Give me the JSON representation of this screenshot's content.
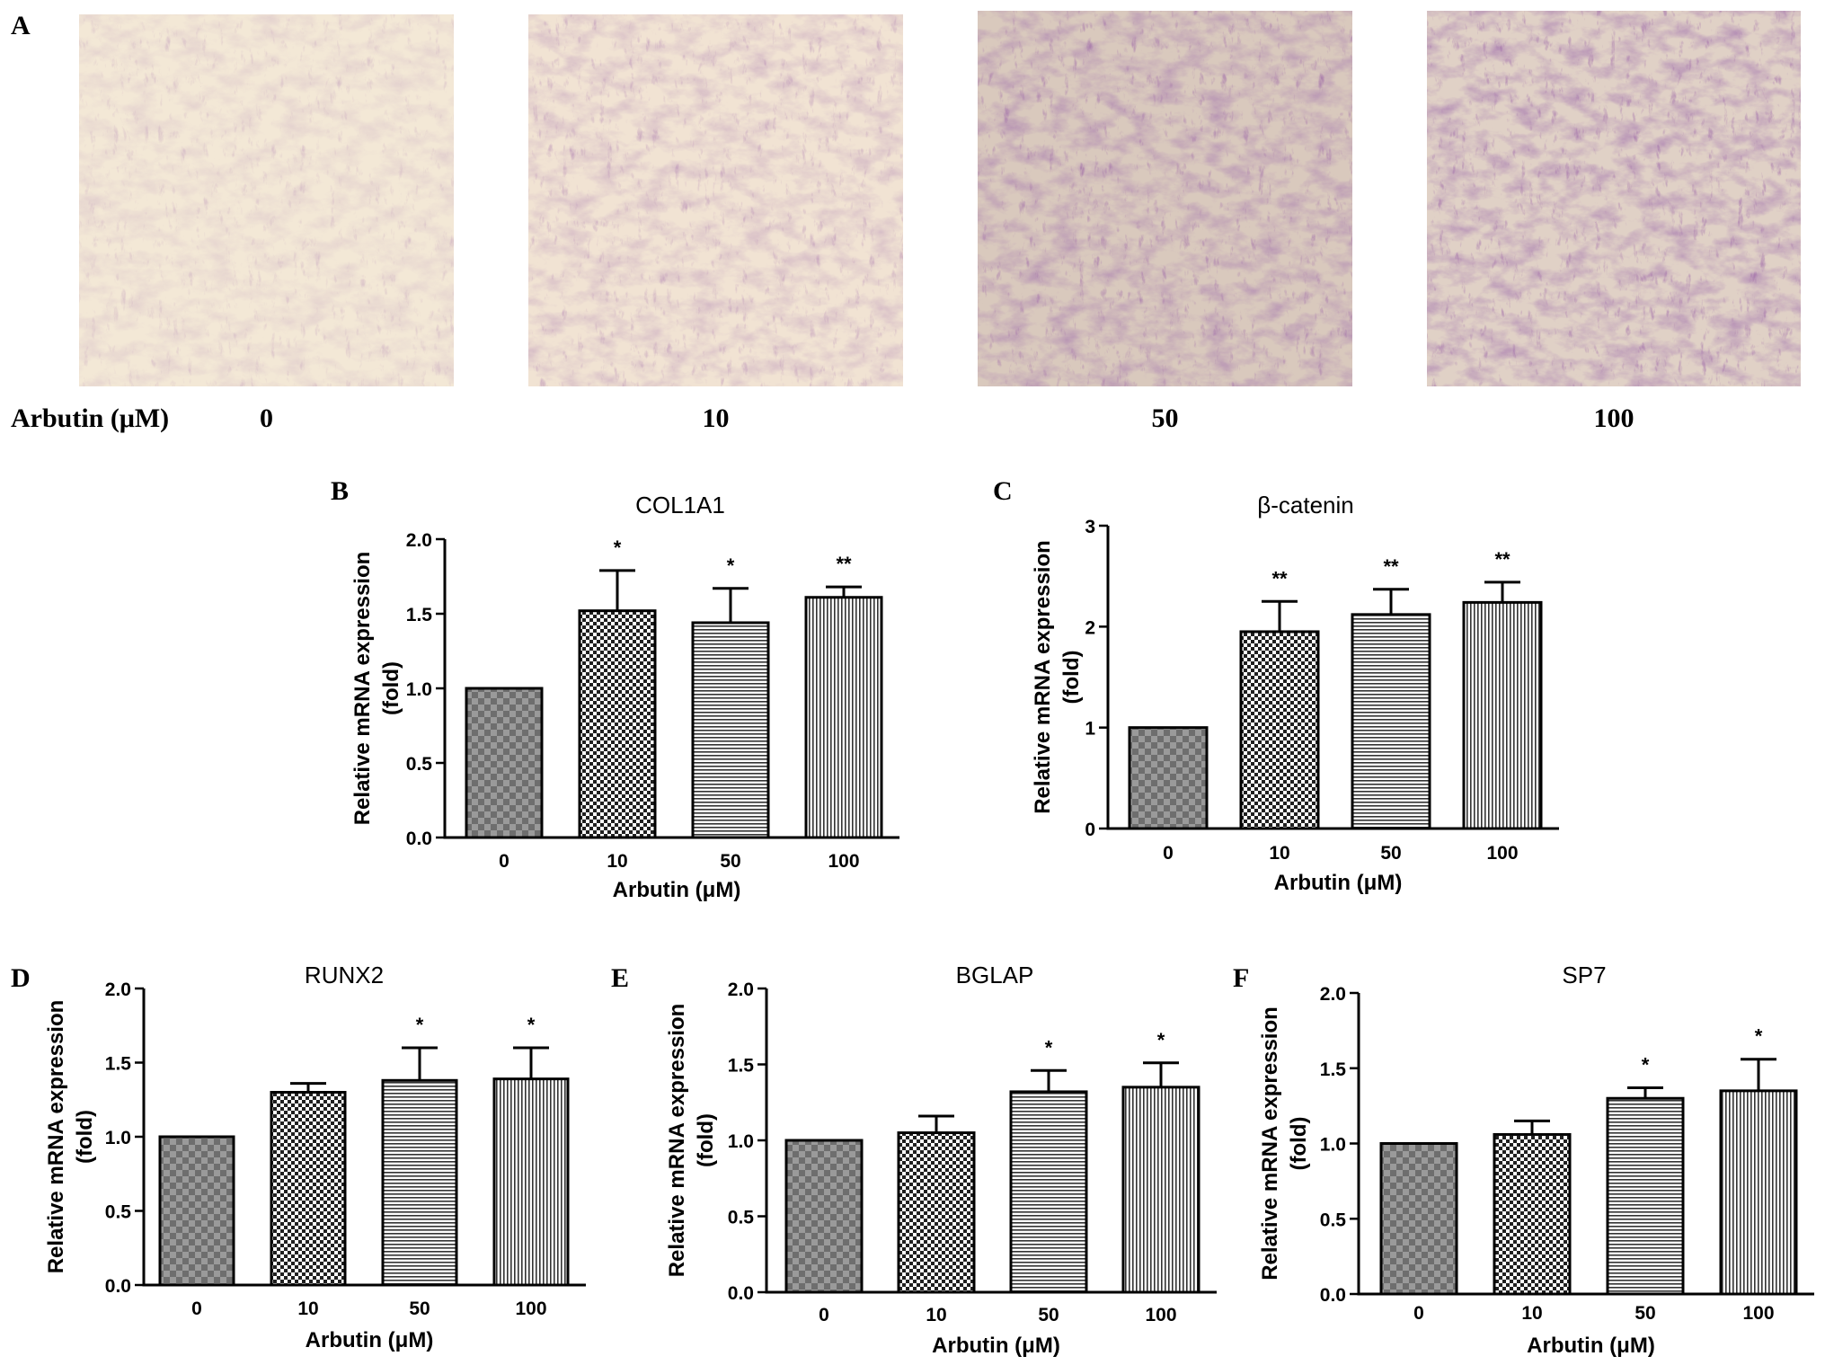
{
  "figure": {
    "panel_a": {
      "letter": "A",
      "row_label": "Arbutin (μM)",
      "images": [
        {
          "label": "0",
          "stain_density": 0.25
        },
        {
          "label": "10",
          "stain_density": 0.45
        },
        {
          "label": "50",
          "stain_density": 0.75
        },
        {
          "label": "100",
          "stain_density": 0.85
        }
      ],
      "colors": {
        "background_light": "#f2e6d4",
        "stain": "#5a2a6a"
      }
    }
  },
  "chart_data": [
    {
      "panel": "B",
      "type": "bar",
      "title": "COL1A1",
      "ylabel": "Relative mRNA expression (fold)",
      "xlabel": "Arbutin (μM)",
      "categories": [
        "0",
        "10",
        "50",
        "100"
      ],
      "values": [
        1.0,
        1.52,
        1.44,
        1.61
      ],
      "errors": [
        0,
        0.27,
        0.23,
        0.07
      ],
      "significance": [
        "",
        "*",
        "*",
        "**"
      ],
      "ylim": [
        0,
        2.0
      ],
      "yticks": [
        0.0,
        0.5,
        1.0,
        1.5,
        2.0
      ],
      "ytick_labels": [
        "0.0",
        "0.5",
        "1.0",
        "1.5",
        "2.0"
      ]
    },
    {
      "panel": "C",
      "type": "bar",
      "title": "β-catenin",
      "ylabel": "Relative mRNA expression (fold)",
      "xlabel": "Arbutin (μM)",
      "categories": [
        "0",
        "10",
        "50",
        "100"
      ],
      "values": [
        1.0,
        1.95,
        2.12,
        2.24
      ],
      "errors": [
        0,
        0.3,
        0.25,
        0.2
      ],
      "significance": [
        "",
        "**",
        "**",
        "**"
      ],
      "ylim": [
        0,
        3
      ],
      "yticks": [
        0,
        1,
        2,
        3
      ],
      "ytick_labels": [
        "0",
        "1",
        "2",
        "3"
      ]
    },
    {
      "panel": "D",
      "type": "bar",
      "title": "RUNX2",
      "ylabel": "Relative mRNA expression (fold)",
      "xlabel": "Arbutin (μM)",
      "categories": [
        "0",
        "10",
        "50",
        "100"
      ],
      "values": [
        1.0,
        1.3,
        1.38,
        1.39
      ],
      "errors": [
        0,
        0.06,
        0.22,
        0.21
      ],
      "significance": [
        "",
        "",
        "*",
        "*"
      ],
      "ylim": [
        0,
        2.0
      ],
      "yticks": [
        0.0,
        0.5,
        1.0,
        1.5,
        2.0
      ],
      "ytick_labels": [
        "0.0",
        "0.5",
        "1.0",
        "1.5",
        "2.0"
      ]
    },
    {
      "panel": "E",
      "type": "bar",
      "title": "BGLAP",
      "ylabel": "Relative mRNA expression (fold)",
      "xlabel": "Arbutin (μM)",
      "categories": [
        "0",
        "10",
        "50",
        "100"
      ],
      "values": [
        1.0,
        1.05,
        1.32,
        1.35
      ],
      "errors": [
        0,
        0.11,
        0.14,
        0.16
      ],
      "significance": [
        "",
        "",
        "*",
        "*"
      ],
      "ylim": [
        0,
        2.0
      ],
      "yticks": [
        0.0,
        0.5,
        1.0,
        1.5,
        2.0
      ],
      "ytick_labels": [
        "0.0",
        "0.5",
        "1.0",
        "1.5",
        "2.0"
      ]
    },
    {
      "panel": "F",
      "type": "bar",
      "title": "SP7",
      "ylabel": "Relative mRNA expression (fold)",
      "xlabel": "Arbutin (μM)",
      "categories": [
        "0",
        "10",
        "50",
        "100"
      ],
      "values": [
        1.0,
        1.06,
        1.3,
        1.35
      ],
      "errors": [
        0,
        0.09,
        0.07,
        0.21
      ],
      "significance": [
        "",
        "",
        "*",
        "*"
      ],
      "ylim": [
        0,
        2.0
      ],
      "yticks": [
        0.0,
        0.5,
        1.0,
        1.5,
        2.0
      ],
      "ytick_labels": [
        "0.0",
        "0.5",
        "1.0",
        "1.5",
        "2.0"
      ]
    }
  ]
}
